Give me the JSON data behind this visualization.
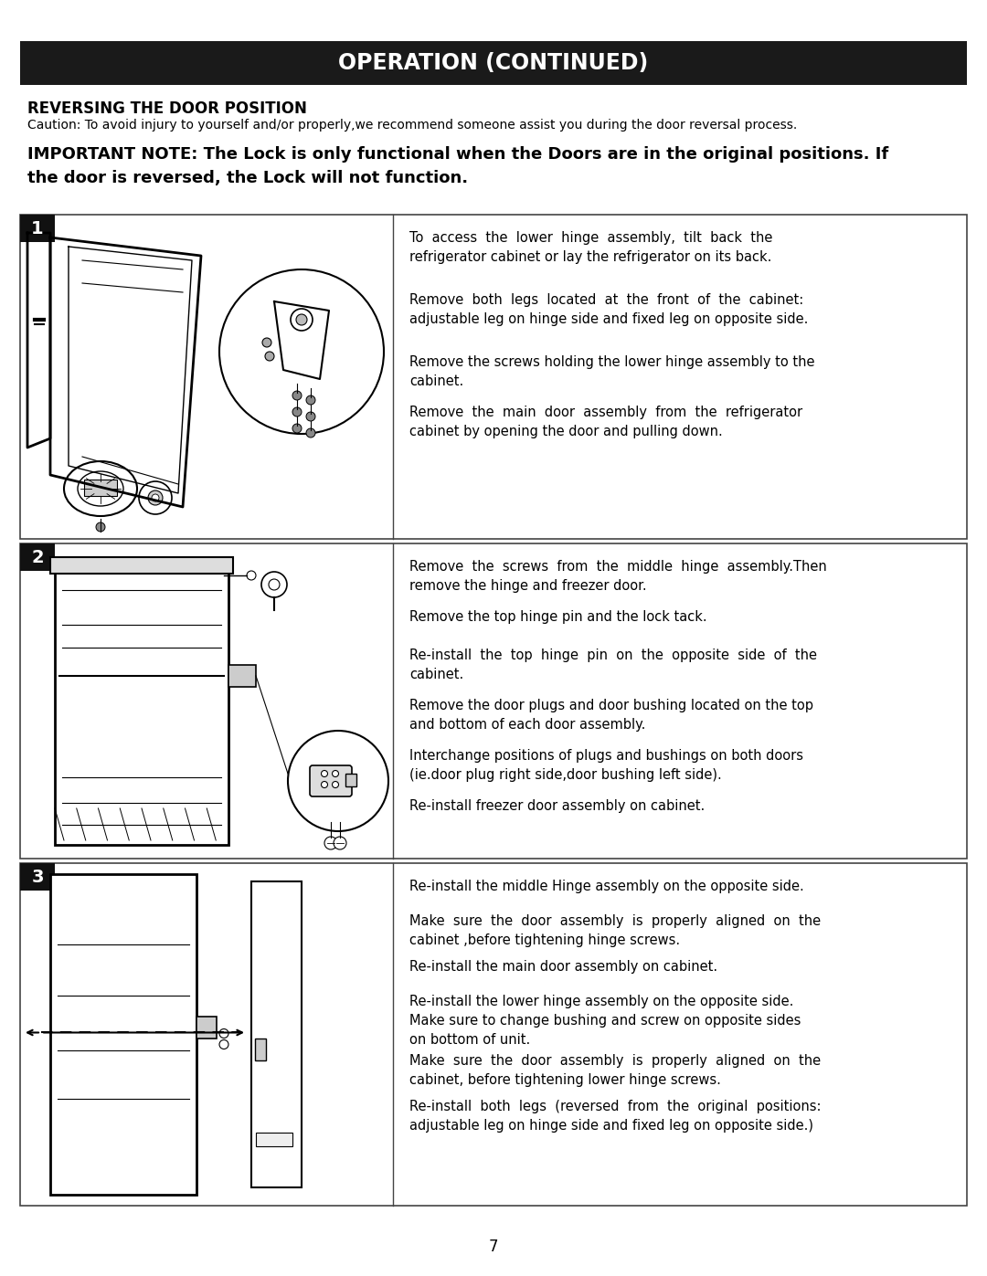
{
  "page_bg": "#ffffff",
  "header_bg": "#1a1a1a",
  "header_text": "OPERATION (CONTINUED)",
  "header_text_color": "#ffffff",
  "section_title": "REVERSING THE DOOR POSITION",
  "caution_text": "Caution: To avoid injury to yourself and/or properly,we recommend someone assist you during the door reversal process.",
  "important_note_bold": "IMPORTANT NOTE: The Lock is only functional when the Doors are in the original positions. If\nthe door is reversed, the Lock will not function.",
  "step1_instructions": [
    "To  access  the  lower  hinge  assembly,  tilt  back  the\nrefrigerator cabinet or lay the refrigerator on its back.",
    "Remove  both  legs  located  at  the  front  of  the  cabinet:\nadjustable leg on hinge side and fixed leg on opposite side.",
    "Remove the screws holding the lower hinge assembly to the\ncabinet.",
    "Remove  the  main  door  assembly  from  the  refrigerator\ncabinet by opening the door and pulling down."
  ],
  "step2_instructions": [
    "Remove  the  screws  from  the  middle  hinge  assembly.Then\nremove the hinge and freezer door.",
    "Remove the top hinge pin and the lock tack.",
    "Re-install  the  top  hinge  pin  on  the  opposite  side  of  the\ncabinet.",
    "Remove the door plugs and door bushing located on the top\nand bottom of each door assembly.",
    "Interchange positions of plugs and bushings on both doors\n(ie.door plug right side,door bushing left side).",
    "Re-install freezer door assembly on cabinet."
  ],
  "step3_instructions": [
    "Re-install the middle Hinge assembly on the opposite side.",
    "Make  sure  the  door  assembly  is  properly  aligned  on  the\ncabinet ,before tightening hinge screws.",
    "Re-install the main door assembly on cabinet.",
    "Re-install the lower hinge assembly on the opposite side.\nMake sure to change bushing and screw on opposite sides\non bottom of unit.",
    "Make  sure  the  door  assembly  is  properly  aligned  on  the\ncabinet, before tightening lower hinge screws.",
    "Re-install  both  legs  (reversed  from  the  original  positions:\nadjustable leg on hinge side and fixed leg on opposite side.)"
  ],
  "page_number": "7"
}
